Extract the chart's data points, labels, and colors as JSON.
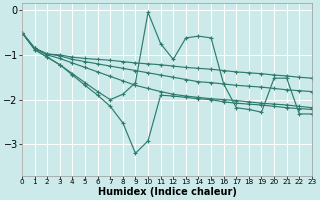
{
  "bg_color": "#cceaea",
  "line_color": "#2d7b6e",
  "grid_color": "#ffffff",
  "xlabel": "Humidex (Indice chaleur)",
  "ylim": [
    -3.7,
    0.15
  ],
  "xlim": [
    0,
    23
  ],
  "yticks": [
    0,
    -1,
    -2,
    -3
  ],
  "figsize": [
    3.2,
    2.0
  ],
  "dpi": 100,
  "lines": [
    {
      "x": [
        0,
        1,
        2,
        3,
        4,
        5,
        6,
        7,
        8,
        9,
        10,
        11,
        12,
        13,
        14,
        15,
        16,
        17,
        18,
        19,
        20,
        21,
        22,
        23
      ],
      "y": [
        -0.5,
        -0.85,
        -0.98,
        -1.0,
        -1.05,
        -1.08,
        -1.1,
        -1.12,
        -1.15,
        -1.18,
        -1.2,
        -1.22,
        -1.25,
        -1.28,
        -1.3,
        -1.32,
        -1.35,
        -1.38,
        -1.4,
        -1.42,
        -1.45,
        -1.47,
        -1.5,
        -1.52
      ],
      "marker": "+"
    },
    {
      "x": [
        0,
        1,
        2,
        3,
        4,
        5,
        6,
        7,
        8,
        9,
        10,
        11,
        12,
        13,
        14,
        15,
        16,
        17,
        18,
        19,
        20,
        21,
        22,
        23
      ],
      "y": [
        -0.5,
        -0.85,
        -0.98,
        -1.02,
        -1.1,
        -1.15,
        -1.2,
        -1.25,
        -1.3,
        -1.35,
        -1.4,
        -1.45,
        -1.5,
        -1.55,
        -1.6,
        -1.62,
        -1.65,
        -1.68,
        -1.7,
        -1.72,
        -1.75,
        -1.78,
        -1.8,
        -1.82
      ],
      "marker": "+"
    },
    {
      "x": [
        0,
        1,
        2,
        3,
        4,
        5,
        6,
        7,
        8,
        9,
        10,
        11,
        12,
        13,
        14,
        15,
        16,
        17,
        18,
        19,
        20,
        21,
        22,
        23
      ],
      "y": [
        -0.5,
        -0.85,
        -1.0,
        -1.08,
        -1.18,
        -1.28,
        -1.38,
        -1.48,
        -1.58,
        -1.68,
        -1.75,
        -1.82,
        -1.88,
        -1.92,
        -1.95,
        -1.98,
        -2.0,
        -2.02,
        -2.05,
        -2.08,
        -2.1,
        -2.12,
        -2.15,
        -2.18
      ],
      "marker": "+"
    },
    {
      "x": [
        0,
        1,
        2,
        3,
        4,
        5,
        6,
        7,
        8,
        9,
        10,
        11,
        12,
        13,
        14,
        15,
        16,
        17,
        18,
        19,
        20,
        21,
        22,
        23
      ],
      "y": [
        -0.5,
        -0.88,
        -1.05,
        -1.22,
        -1.45,
        -1.68,
        -1.9,
        -2.15,
        -2.52,
        -3.2,
        -2.92,
        -1.9,
        -1.92,
        -1.95,
        -1.98,
        -2.0,
        -2.05,
        -2.08,
        -2.1,
        -2.12,
        -2.15,
        -2.18,
        -2.2,
        -2.22
      ],
      "marker": "+"
    },
    {
      "x": [
        0,
        1,
        2,
        3,
        4,
        5,
        6,
        7,
        8,
        9,
        10,
        11,
        12,
        13,
        14,
        15,
        16,
        17,
        18,
        19,
        20,
        21,
        22,
        23
      ],
      "y": [
        -0.5,
        -0.88,
        -1.05,
        -1.22,
        -1.42,
        -1.62,
        -1.82,
        -2.0,
        -1.88,
        -1.62,
        -0.05,
        -0.75,
        -1.1,
        -0.62,
        -0.58,
        -0.62,
        -1.65,
        -2.18,
        -2.22,
        -2.28,
        -1.52,
        -1.52,
        -2.32,
        -2.32
      ],
      "marker": "+"
    }
  ]
}
